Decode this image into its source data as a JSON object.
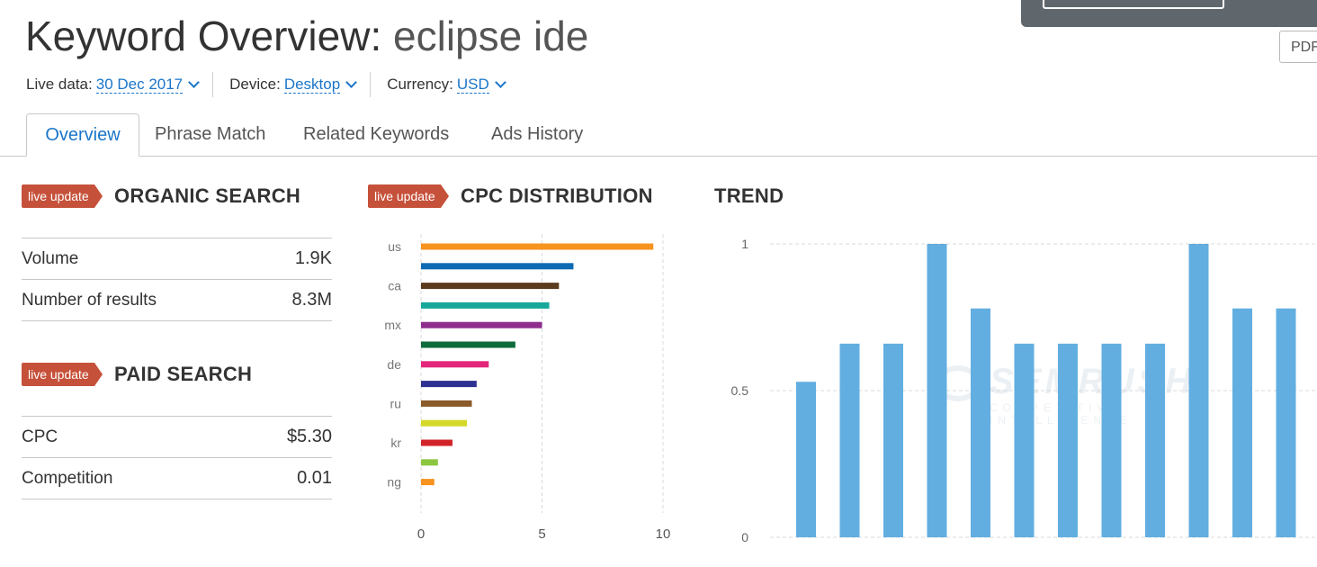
{
  "pdf_label": "PDF",
  "title": {
    "prefix": "Keyword Overview:",
    "keyword": "eclipse ide"
  },
  "filters": {
    "live_data": {
      "label": "Live data:",
      "value": "30 Dec 2017"
    },
    "device": {
      "label": "Device:",
      "value": "Desktop"
    },
    "currency": {
      "label": "Currency:",
      "value": "USD"
    }
  },
  "tabs": [
    {
      "label": "Overview",
      "active": true
    },
    {
      "label": "Phrase Match",
      "active": false
    },
    {
      "label": "Related Keywords",
      "active": false
    },
    {
      "label": "Ads History",
      "active": false
    }
  ],
  "organic": {
    "badge": "live update",
    "title": "ORGANIC SEARCH",
    "rows": [
      {
        "label": "Volume",
        "value": "1.9K"
      },
      {
        "label": "Number of results",
        "value": "8.3M"
      }
    ]
  },
  "paid": {
    "badge": "live update",
    "title": "PAID SEARCH",
    "rows": [
      {
        "label": "CPC",
        "value": "$5.30"
      },
      {
        "label": "Competition",
        "value": "0.01"
      }
    ]
  },
  "cpc": {
    "badge": "live update",
    "title": "CPC DISTRIBUTION"
  },
  "trend": {
    "title": "TREND"
  },
  "watermark": {
    "main": "SEMRUSH",
    "sub": "COMPETITIVE INTELLIGENCE"
  },
  "chart_data": [
    {
      "type": "bar",
      "orientation": "horizontal",
      "categories": [
        "us",
        "",
        "ca",
        "",
        "mx",
        "",
        "de",
        "",
        "ru",
        "",
        "kr",
        "",
        "ng"
      ],
      "values": [
        9.6,
        6.3,
        5.7,
        5.3,
        5.0,
        3.9,
        2.8,
        2.3,
        2.1,
        1.9,
        1.3,
        0.7,
        0.55
      ],
      "colors": [
        "#f7931e",
        "#0f6ab4",
        "#5b3a1e",
        "#17a89a",
        "#8e2d8e",
        "#0e6b3c",
        "#e3267a",
        "#2e3192",
        "#8b5a2b",
        "#d4d928",
        "#d2232a",
        "#8cc63f",
        "#f7931e"
      ],
      "xticks": [
        0,
        5,
        10
      ],
      "xlim": [
        0,
        10
      ],
      "grid": true
    },
    {
      "type": "bar",
      "values": [
        0.53,
        0.66,
        0.66,
        1.0,
        0.78,
        0.66,
        0.66,
        0.66,
        0.66,
        1.0,
        0.78,
        0.78
      ],
      "color": "#62aee0",
      "yticks": [
        0,
        0.5,
        1
      ],
      "ylim": [
        0,
        1
      ],
      "grid": true
    }
  ]
}
